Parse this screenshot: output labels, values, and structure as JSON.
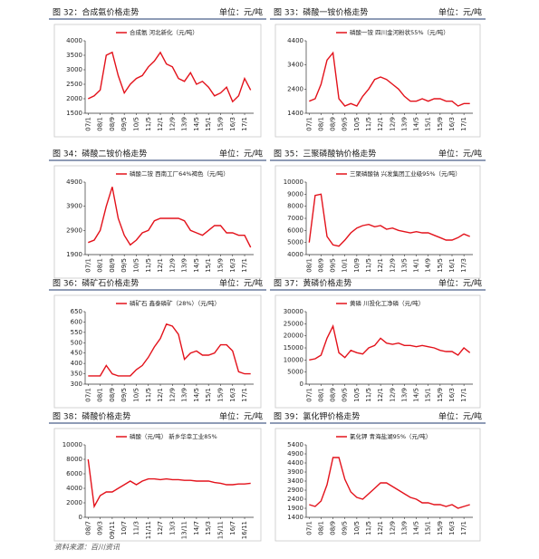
{
  "chart_data": [
    {
      "type": "line",
      "caption": "图 32：合成氨价格走势",
      "unit": "单位：元/吨",
      "categories": [
        "07/1",
        null,
        "08/1",
        null,
        "08/9",
        null,
        "09/5",
        null,
        "10/5",
        null,
        "11/5",
        null,
        "12/1",
        null,
        "12/9",
        null,
        "13/9",
        null,
        "14/5",
        null,
        "15/1",
        null,
        "15/9",
        null,
        "16/3",
        null,
        "17/1",
        null
      ],
      "series": [
        {
          "name": "合成氨 河北新化（元/吨）",
          "color": "#e3121b",
          "values": [
            2000,
            2100,
            2300,
            3500,
            3600,
            2800,
            2200,
            2500,
            2700,
            2800,
            3100,
            3300,
            3600,
            3200,
            3100,
            2700,
            2600,
            2900,
            2500,
            2600,
            2400,
            2100,
            2200,
            2400,
            1900,
            2100,
            2700,
            2300
          ]
        }
      ],
      "ylim": [
        1500,
        4000
      ],
      "yticks": [
        1500,
        2000,
        2500,
        3000,
        3500,
        4000
      ],
      "grid": false
    },
    {
      "type": "line",
      "caption": "图 33：磷酸一铵价格走势",
      "unit": "单位：元/吨",
      "categories": [
        "07/1",
        null,
        "08/1",
        null,
        "08/9",
        null,
        "09/5",
        null,
        "10/5",
        null,
        "11/5",
        null,
        "12/1",
        null,
        "12/9",
        null,
        "13/9",
        null,
        "14/5",
        null,
        "15/1",
        null,
        "15/9",
        null,
        "16/3",
        null,
        "17/1",
        null
      ],
      "series": [
        {
          "name": "磷酸一铵 四川金河粉状55%（元/吨）",
          "color": "#e3121b",
          "values": [
            1900,
            2000,
            2600,
            3600,
            3900,
            2000,
            1700,
            1800,
            1700,
            2100,
            2400,
            2800,
            2900,
            2800,
            2600,
            2400,
            2100,
            1900,
            1900,
            2000,
            1900,
            2000,
            2000,
            1900,
            1900,
            1700,
            1800,
            1800
          ]
        }
      ],
      "ylim": [
        1400,
        4400
      ],
      "yticks": [
        1400,
        2400,
        3400,
        4400
      ],
      "grid": false
    },
    {
      "type": "line",
      "caption": "图 34：磷酸二铵价格走势",
      "unit": "单位：元/吨",
      "categories": [
        "07/1",
        null,
        "08/1",
        null,
        "08/9",
        null,
        "09/5",
        null,
        "10/5",
        null,
        "11/5",
        null,
        "12/1",
        null,
        "12/9",
        null,
        "13/9",
        null,
        "14/5",
        null,
        "15/1",
        null,
        "15/9",
        null,
        "16/3",
        null,
        "17/1",
        null
      ],
      "series": [
        {
          "name": "磷酸二铵 西南工厂64%褐色（元/吨）",
          "color": "#e3121b",
          "values": [
            2400,
            2500,
            2900,
            3900,
            4700,
            3400,
            2700,
            2300,
            2500,
            2800,
            2900,
            3300,
            3400,
            3400,
            3400,
            3400,
            3300,
            2900,
            2800,
            2700,
            2900,
            3100,
            3100,
            2800,
            2800,
            2700,
            2700,
            2200
          ]
        }
      ],
      "ylim": [
        1900,
        4900
      ],
      "yticks": [
        1900,
        2900,
        3900,
        4900
      ],
      "grid": false
    },
    {
      "type": "line",
      "caption": "图 35：三聚磷酸钠价格走势",
      "unit": "单位：元/吨",
      "categories": [
        "08/1",
        null,
        "08/9",
        null,
        "09/5",
        null,
        "10/1",
        null,
        "10/9",
        null,
        "11/5",
        null,
        "12/1",
        null,
        "12/9",
        null,
        "13/5",
        null,
        "14/1",
        null,
        "14/9",
        null,
        "15/5",
        null,
        "16/1",
        null,
        "17/3",
        null
      ],
      "series": [
        {
          "name": "三聚磷酸钠 兴发集团工业级95%（元/吨）",
          "color": "#e3121b",
          "values": [
            5000,
            8900,
            9000,
            5500,
            4800,
            4700,
            5200,
            5800,
            6200,
            6400,
            6500,
            6300,
            6400,
            6100,
            6200,
            6000,
            5900,
            5800,
            5900,
            5800,
            5800,
            5600,
            5400,
            5200,
            5200,
            5400,
            5700,
            5500
          ]
        }
      ],
      "ylim": [
        4000,
        10000
      ],
      "yticks": [
        4000,
        5000,
        6000,
        7000,
        8000,
        9000,
        10000
      ],
      "grid": false
    },
    {
      "type": "line",
      "caption": "图 36：磷矿石价格走势",
      "unit": "单位：元/吨",
      "categories": [
        "07/1",
        null,
        "08/1",
        null,
        "08/9",
        null,
        "09/5",
        null,
        "10/5",
        null,
        "11/5",
        null,
        "12/1",
        null,
        "12/9",
        null,
        "13/9",
        null,
        "14/5",
        null,
        "15/1",
        null,
        "15/9",
        null,
        "16/3",
        null,
        "17/1",
        null
      ],
      "series": [
        {
          "name": "磷矿石 鑫泰磷矿（28%）（元/吨）",
          "color": "#e3121b",
          "values": [
            340,
            340,
            340,
            390,
            350,
            340,
            340,
            340,
            370,
            390,
            430,
            480,
            520,
            590,
            580,
            540,
            420,
            450,
            460,
            440,
            440,
            450,
            490,
            490,
            460,
            360,
            350,
            350
          ]
        }
      ],
      "ylim": [
        300,
        650
      ],
      "yticks": [
        300,
        350,
        400,
        450,
        500,
        550,
        600,
        650
      ],
      "grid": false
    },
    {
      "type": "line",
      "caption": "图 37：黄磷价格走势",
      "unit": "单位：元/吨",
      "categories": [
        "07/1",
        null,
        "08/1",
        null,
        "08/9",
        null,
        "09/5",
        null,
        "10/5",
        null,
        "11/5",
        null,
        "12/1",
        null,
        "12/9",
        null,
        "13/9",
        null,
        "14/5",
        null,
        "15/1",
        null,
        "15/9",
        null,
        "16/3",
        null,
        "17/1",
        null
      ],
      "series": [
        {
          "name": "黄磷 川投化工净磷（元/吨）",
          "color": "#e3121b",
          "values": [
            10000,
            10500,
            12000,
            19000,
            24000,
            13000,
            11000,
            14000,
            13000,
            12500,
            15000,
            16000,
            19000,
            17000,
            16500,
            17000,
            16000,
            16000,
            15500,
            16000,
            15500,
            15000,
            14000,
            13500,
            13500,
            12000,
            15000,
            13000
          ]
        }
      ],
      "ylim": [
        0,
        30000
      ],
      "yticks": [
        0,
        5000,
        10000,
        15000,
        20000,
        25000,
        30000
      ],
      "grid": false
    },
    {
      "type": "line",
      "caption": "图 38：磷酸价格走势",
      "unit": "单位：元/吨",
      "categories": [
        "08/7",
        null,
        "09/3",
        null,
        "09/11",
        null,
        "10/7",
        null,
        "11/3",
        null,
        "11/11",
        null,
        "12/7",
        null,
        "13/3",
        null,
        "13/11",
        null,
        "14/7",
        null,
        "15/3",
        null,
        "15/11",
        null,
        "16/7",
        null,
        "16/11",
        null
      ],
      "series": [
        {
          "name": "磷酸（元/吨） 新乡华幸工业85%",
          "color": "#e3121b",
          "values": [
            8000,
            1500,
            3000,
            3500,
            3500,
            4000,
            4500,
            5000,
            4500,
            5000,
            5300,
            5300,
            5200,
            5300,
            5200,
            5200,
            5100,
            5100,
            5000,
            5000,
            5000,
            4800,
            4700,
            4500,
            4500,
            4600,
            4600,
            4700
          ]
        }
      ],
      "ylim": [
        0,
        10000
      ],
      "yticks": [
        0,
        2000,
        4000,
        6000,
        8000,
        10000
      ],
      "grid": false
    },
    {
      "type": "line",
      "caption": "图 39：氯化钾价格走势",
      "unit": "单位：元/吨",
      "categories": [
        "07/1",
        null,
        "08/1",
        null,
        "08/9",
        null,
        "09/5",
        null,
        "10/5",
        null,
        "11/5",
        null,
        "12/1",
        null,
        "12/9",
        null,
        "13/9",
        null,
        "14/5",
        null,
        "15/1",
        null,
        "15/9",
        null,
        "16/3",
        null,
        "17/1",
        null
      ],
      "series": [
        {
          "name": "氯化钾 青海盐湖95%（元/吨）",
          "color": "#e3121b",
          "values": [
            2100,
            2000,
            2300,
            3200,
            4700,
            4700,
            3500,
            2800,
            2500,
            2400,
            2700,
            3000,
            3300,
            3300,
            3100,
            2900,
            2700,
            2500,
            2400,
            2200,
            2200,
            2100,
            2100,
            2000,
            2100,
            1900,
            2000,
            2100
          ]
        }
      ],
      "ylim": [
        1400,
        5400
      ],
      "yticks": [
        1400,
        1900,
        2400,
        2900,
        3400,
        3900,
        4400,
        4900,
        5400
      ],
      "grid": false
    }
  ],
  "source": "资料来源：百川资讯"
}
